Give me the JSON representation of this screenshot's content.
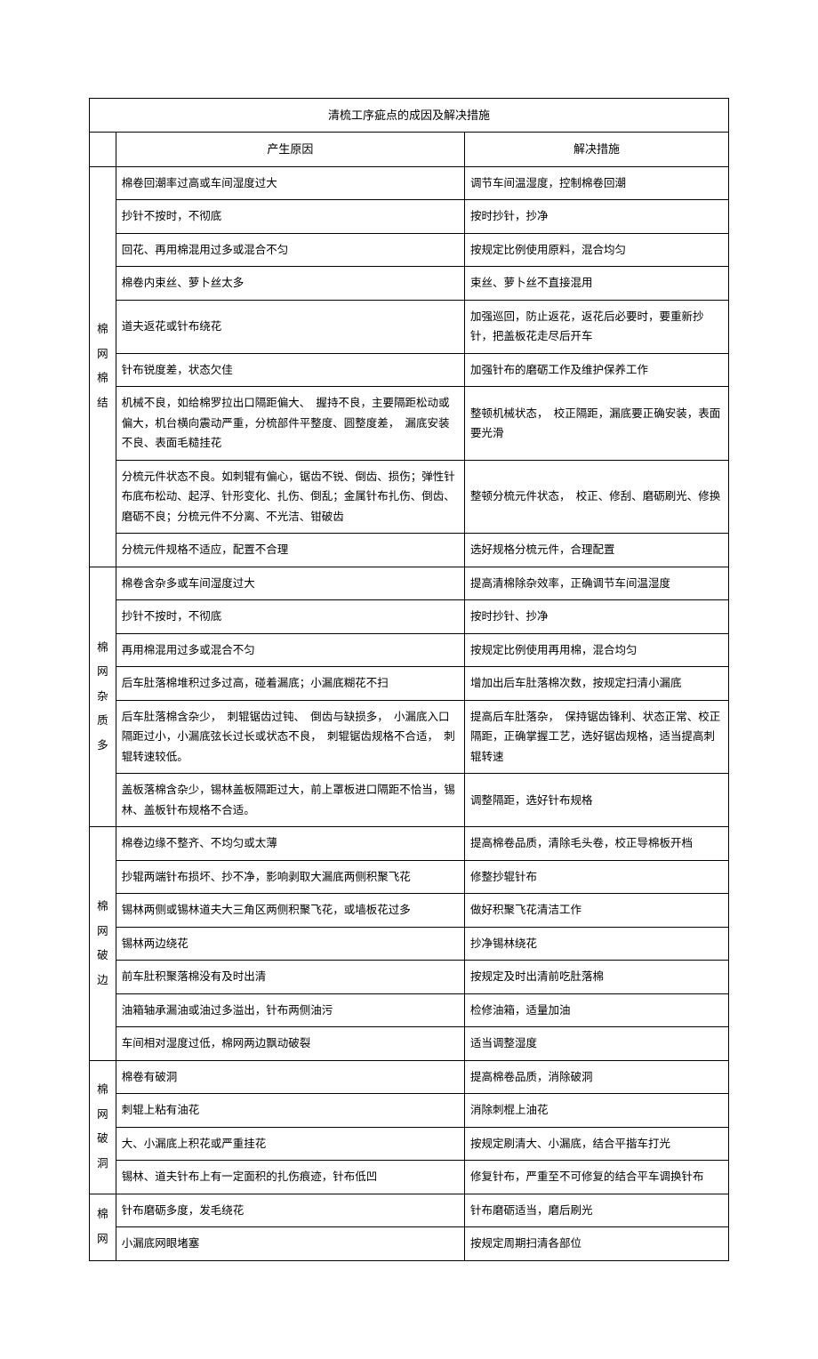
{
  "title": "清梳工序疵点的成因及解决措施",
  "headers": {
    "category": "",
    "cause": "产生原因",
    "solution": "解决措施"
  },
  "sections": [
    {
      "category_chars": [
        "棉",
        "网",
        "棉",
        "结"
      ],
      "rows": [
        {
          "cause": "棉卷回潮率过高或车间湿度过大",
          "solution": "调节车间温湿度，控制棉卷回潮"
        },
        {
          "cause": "抄针不按时，不彻底",
          "solution": "按时抄针，抄净"
        },
        {
          "cause": "回花、再用棉混用过多或混合不匀",
          "solution": "按规定比例使用原料，混合均匀"
        },
        {
          "cause": "棉卷内束丝、萝卜丝太多",
          "solution": "束丝、萝卜丝不直接混用"
        },
        {
          "cause": "道夫返花或针布绕花",
          "solution": "加强巡回，防止返花，返花后必要时，要重新抄针，把盖板花走尽后开车"
        },
        {
          "cause": "针布锐度差，状态欠佳",
          "solution": "加强针布的磨砺工作及维护保养工作"
        },
        {
          "cause": "机械不良，如给棉罗拉出口隔距偏大、　握持不良，主要隔距松动或偏大，机台横向震动严重，分梳部件平整度、圆整度差，　漏底安装不良、表面毛糙挂花",
          "solution": "整顿机械状态，　校正隔距，漏底要正确安装，表面要光滑"
        },
        {
          "cause": "分梳元件状态不良。如刺辊有偏心，锯齿不锐、倒齿、损伤；弹性针布底布松动、起浮、针形变化、扎伤、倒乱；金属针布扎伤、倒齿、磨砺不良；分梳元件不分离、不光洁、钳破齿",
          "solution": "整顿分梳元件状态，　校正、修刮、磨砺刷光、修换"
        },
        {
          "cause": "分梳元件规格不适应，配置不合理",
          "solution": "选好规格分梳元件，合理配置"
        }
      ]
    },
    {
      "category_chars": [
        "棉",
        "网",
        "杂",
        "质",
        "多"
      ],
      "rows": [
        {
          "cause": "棉卷含杂多或车间湿度过大",
          "solution": "提高清棉除杂效率，正确调节车间温湿度"
        },
        {
          "cause": "抄针不按时，不彻底",
          "solution": "按时抄针、抄净"
        },
        {
          "cause": "再用棉混用过多或混合不匀",
          "solution": "按规定比例使用再用棉，混合均匀"
        },
        {
          "cause": "后车肚落棉堆积过多过高，碰着漏底；小漏底糊花不扫",
          "solution": "增加出后车肚落棉次数，按规定扫清小漏底"
        },
        {
          "cause": "后车肚落棉含杂少，　刺辊锯齿过钝、　倒齿与缺损多，　小漏底入口隔距过小，小漏底弦长过长或状态不良，　刺辊锯齿规格不合适，　刺辊转速较低。",
          "solution": "提高后车肚落杂，　保持锯齿锋利、状态正常、校正隔距，正确掌握工艺，选好锯齿规格，适当提高刺辊转速"
        },
        {
          "cause": "盖板落棉含杂少，锡林盖板隔距过大，前上罩板进口隔距不恰当，锡林、盖板针布规格不合适。",
          "solution": "调整隔距，选好针布规格"
        }
      ]
    },
    {
      "category_chars": [
        "棉",
        "网",
        "破",
        "边"
      ],
      "rows": [
        {
          "cause": "棉卷边缘不整齐、不均匀或太薄",
          "solution": "提高棉卷品质，清除毛头卷，校正导棉板开档"
        },
        {
          "cause": "抄辊两端针布损坏、抄不净，影响剥取大漏底两侧积聚飞花",
          "solution": "修整抄辊针布"
        },
        {
          "cause": "锡林两侧或锡林道夫大三角区两侧积聚飞花，或墙板花过多",
          "solution": "做好积聚飞花清洁工作"
        },
        {
          "cause": "锡林两边绕花",
          "solution": "抄净锡林绕花"
        },
        {
          "cause": "前车肚积聚落棉没有及时出清",
          "solution": "按规定及时出清前吃肚落棉"
        },
        {
          "cause": "油箱轴承漏油或油过多溢出，针布两侧油污",
          "solution": "检修油箱，适量加油"
        },
        {
          "cause": "车间相对湿度过低，棉网两边飘动破裂",
          "solution": "适当调整湿度"
        }
      ]
    },
    {
      "category_chars": [
        "棉",
        "网",
        "破",
        "洞"
      ],
      "rows": [
        {
          "cause": "棉卷有破洞",
          "solution": "提高棉卷品质，消除破洞"
        },
        {
          "cause": "刺辊上粘有油花",
          "solution": "消除刺棍上油花"
        },
        {
          "cause": "大、小漏底上积花或严重挂花",
          "solution": "按规定刷清大、小漏底，结合平揩车打光"
        },
        {
          "cause": "锡林、道夫针布上有一定面积的扎伤痕迹，针布低凹",
          "solution": "修复针布，严重至不可修复的结合平车调换针布"
        }
      ]
    },
    {
      "category_chars": [
        "棉",
        "网"
      ],
      "rows": [
        {
          "cause": "针布磨砺多度，发毛绕花",
          "solution": "针布磨砺适当，磨后刷光"
        },
        {
          "cause": "小漏底网眼堵塞",
          "solution": "按规定周期扫清各部位"
        }
      ]
    }
  ]
}
